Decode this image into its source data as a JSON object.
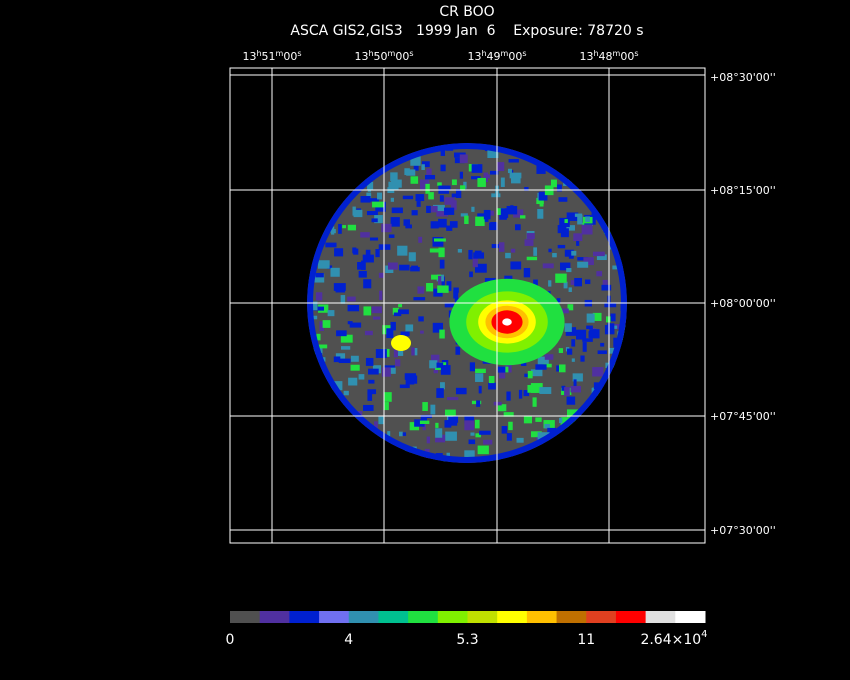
{
  "header": {
    "title": "CR BOO",
    "subtitle": "ASCA GIS2,GIS3   1999 Jan  6    Exposure: 78720 s"
  },
  "ra_labels": [
    [
      "13",
      "h",
      "51",
      "m",
      "00",
      "s"
    ],
    [
      "13",
      "h",
      "50",
      "m",
      "00",
      "s"
    ],
    [
      "13",
      "h",
      "49",
      "m",
      "00",
      "s"
    ],
    [
      "13",
      "h",
      "48",
      "m",
      "00",
      "s"
    ]
  ],
  "dec_labels": [
    "+08°30'00''",
    "+08°15'00''",
    "+08°00'00''",
    "+07°45'00''",
    "+07°30'00''"
  ],
  "colorbar": {
    "colors": [
      "#505050",
      "#5030a0",
      "#0020d0",
      "#7070f0",
      "#3090b0",
      "#00c090",
      "#20e040",
      "#80f000",
      "#c0e000",
      "#ffff00",
      "#ffc000",
      "#c07000",
      "#e04020",
      "#ff0000",
      "#e0e0e0",
      "#ffffff"
    ],
    "labels": [
      "0",
      "4",
      "5.3",
      "11"
    ],
    "max_label": [
      "2.64×10",
      "4"
    ]
  }
}
